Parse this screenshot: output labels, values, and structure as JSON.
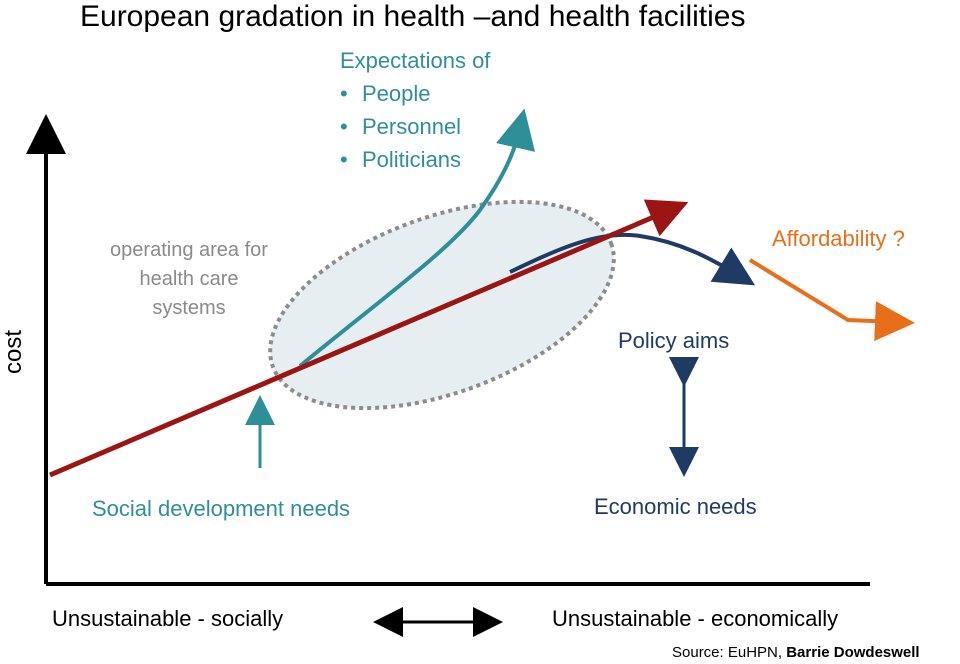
{
  "title": "European gradation in health –and health facilities",
  "expectations": {
    "heading": "Expectations of",
    "items": [
      "People",
      "Personnel",
      "Politicians"
    ],
    "bullet": "•"
  },
  "operating_area": "operating area for health care systems",
  "affordability": "Affordability ?",
  "policy_aims": "Policy aims",
  "social_needs": "Social development needs",
  "economic_needs": "Economic needs",
  "y_axis_label": "cost",
  "bottom": {
    "left": "Unsustainable - socially",
    "right": "Unsustainable - economically"
  },
  "source": {
    "prefix": "Source: EuHPN, ",
    "author": "Barrie Dowdeswell"
  },
  "colors": {
    "expectations": "#2f8f98",
    "policy": "#1f3b63",
    "affordability": "#e86f1a",
    "trend": "#9b1515",
    "ellipse_fill": "#e6eef2",
    "ellipse_stroke": "#8c8c8c"
  }
}
